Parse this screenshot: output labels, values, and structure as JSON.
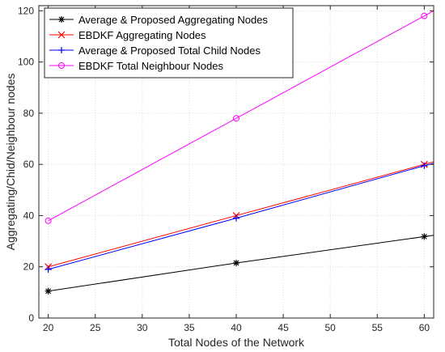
{
  "chart_data": {
    "type": "line",
    "title": "",
    "xlabel": "Total Nodes of the Network",
    "ylabel": "Aggregating/Chid/Neighbour nodes",
    "xlim": [
      19,
      61
    ],
    "ylim": [
      0,
      122
    ],
    "xticks": [
      20,
      25,
      30,
      35,
      40,
      45,
      50,
      55,
      60
    ],
    "yticks": [
      0,
      20,
      40,
      60,
      80,
      100,
      120
    ],
    "grid": true,
    "legend_position": "top-left",
    "series": [
      {
        "name": "Average & Proposed Aggregating Nodes",
        "color": "#000000",
        "marker": "asterisk",
        "x": [
          20,
          40,
          60,
          61
        ],
        "y": [
          10.5,
          21.5,
          31.8,
          32.3
        ]
      },
      {
        "name": "EBDKF Aggregating Nodes",
        "color": "#ff0000",
        "marker": "x",
        "x": [
          20,
          40,
          60,
          61
        ],
        "y": [
          20,
          40,
          60,
          61
        ]
      },
      {
        "name": "Average & Proposed Total Child Nodes",
        "color": "#0000ff",
        "marker": "plus",
        "x": [
          20,
          40,
          60,
          61
        ],
        "y": [
          19,
          39,
          59.5,
          60.4
        ]
      },
      {
        "name": "EBDKF Total Neighbour Nodes",
        "color": "#ff00ff",
        "marker": "circle",
        "x": [
          20,
          40,
          60,
          61
        ],
        "y": [
          38,
          78,
          118,
          120
        ]
      }
    ]
  }
}
